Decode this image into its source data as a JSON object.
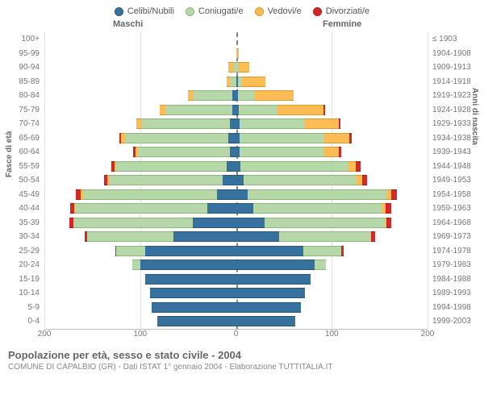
{
  "legend": [
    {
      "label": "Celibi/Nubili",
      "fill": "#37719e",
      "border": "#2a5678"
    },
    {
      "label": "Coniugati/e",
      "fill": "#b6d7a8",
      "border": "#8fb97d"
    },
    {
      "label": "Vedovi/e",
      "fill": "#fbbc55",
      "border": "#d99a2e"
    },
    {
      "label": "Divorziati/e",
      "fill": "#d62728",
      "border": "#a81e1e"
    }
  ],
  "headers": {
    "male": "Maschi",
    "female": "Femmine"
  },
  "axis_titles": {
    "left": "Fasce di età",
    "right": "Anni di nascita"
  },
  "xaxis": {
    "ticks": [
      200,
      100,
      0,
      100,
      200
    ],
    "max": 200
  },
  "caption": {
    "title": "Popolazione per età, sesso e stato civile - 2004",
    "subtitle": "COMUNE DI CAPALBIO (GR) - Dati ISTAT 1° gennaio 2004 - Elaborazione TUTTITALIA.IT"
  },
  "colors": {
    "grid": "#e0e0e0",
    "zero": "#888888",
    "background": "#ffffff"
  },
  "rows": [
    {
      "age": "100+",
      "birth": "≤ 1903",
      "m": [
        0,
        0,
        0,
        0
      ],
      "f": [
        0,
        0,
        0,
        0
      ]
    },
    {
      "age": "95-99",
      "birth": "1904-1908",
      "m": [
        0,
        0,
        0,
        0
      ],
      "f": [
        0,
        0,
        3,
        0
      ]
    },
    {
      "age": "90-94",
      "birth": "1909-1913",
      "m": [
        0,
        3,
        5,
        0
      ],
      "f": [
        0,
        2,
        12,
        0
      ]
    },
    {
      "age": "85-89",
      "birth": "1914-1918",
      "m": [
        0,
        6,
        4,
        0
      ],
      "f": [
        2,
        4,
        25,
        0
      ]
    },
    {
      "age": "80-84",
      "birth": "1919-1923",
      "m": [
        4,
        40,
        6,
        0
      ],
      "f": [
        2,
        18,
        40,
        0
      ]
    },
    {
      "age": "75-79",
      "birth": "1924-1928",
      "m": [
        4,
        70,
        6,
        0
      ],
      "f": [
        3,
        40,
        48,
        2
      ]
    },
    {
      "age": "70-74",
      "birth": "1929-1933",
      "m": [
        6,
        92,
        6,
        0
      ],
      "f": [
        4,
        68,
        35,
        2
      ]
    },
    {
      "age": "65-69",
      "birth": "1934-1938",
      "m": [
        8,
        108,
        4,
        2
      ],
      "f": [
        4,
        88,
        26,
        3
      ]
    },
    {
      "age": "60-64",
      "birth": "1939-1943",
      "m": [
        6,
        96,
        3,
        2
      ],
      "f": [
        4,
        88,
        15,
        3
      ]
    },
    {
      "age": "55-59",
      "birth": "1944-1948",
      "m": [
        10,
        115,
        2,
        3
      ],
      "f": [
        5,
        112,
        8,
        5
      ]
    },
    {
      "age": "50-54",
      "birth": "1949-1953",
      "m": [
        14,
        118,
        2,
        4
      ],
      "f": [
        8,
        118,
        6,
        5
      ]
    },
    {
      "age": "45-49",
      "birth": "1954-1958",
      "m": [
        20,
        140,
        2,
        5
      ],
      "f": [
        12,
        145,
        5,
        6
      ]
    },
    {
      "age": "40-44",
      "birth": "1959-1963",
      "m": [
        30,
        138,
        1,
        4
      ],
      "f": [
        18,
        135,
        3,
        6
      ]
    },
    {
      "age": "35-39",
      "birth": "1964-1968",
      "m": [
        45,
        125,
        0,
        4
      ],
      "f": [
        30,
        125,
        2,
        5
      ]
    },
    {
      "age": "30-34",
      "birth": "1969-1973",
      "m": [
        65,
        90,
        0,
        3
      ],
      "f": [
        45,
        95,
        1,
        4
      ]
    },
    {
      "age": "25-29",
      "birth": "1974-1978",
      "m": [
        95,
        30,
        0,
        1
      ],
      "f": [
        70,
        40,
        0,
        2
      ]
    },
    {
      "age": "20-24",
      "birth": "1979-1983",
      "m": [
        100,
        8,
        0,
        0
      ],
      "f": [
        82,
        12,
        0,
        0
      ]
    },
    {
      "age": "15-19",
      "birth": "1984-1988",
      "m": [
        95,
        0,
        0,
        0
      ],
      "f": [
        78,
        0,
        0,
        0
      ]
    },
    {
      "age": "10-14",
      "birth": "1989-1993",
      "m": [
        90,
        0,
        0,
        0
      ],
      "f": [
        72,
        0,
        0,
        0
      ]
    },
    {
      "age": "5-9",
      "birth": "1994-1998",
      "m": [
        88,
        0,
        0,
        0
      ],
      "f": [
        68,
        0,
        0,
        0
      ]
    },
    {
      "age": "0-4",
      "birth": "1999-2003",
      "m": [
        82,
        0,
        0,
        0
      ],
      "f": [
        62,
        0,
        0,
        0
      ]
    }
  ]
}
